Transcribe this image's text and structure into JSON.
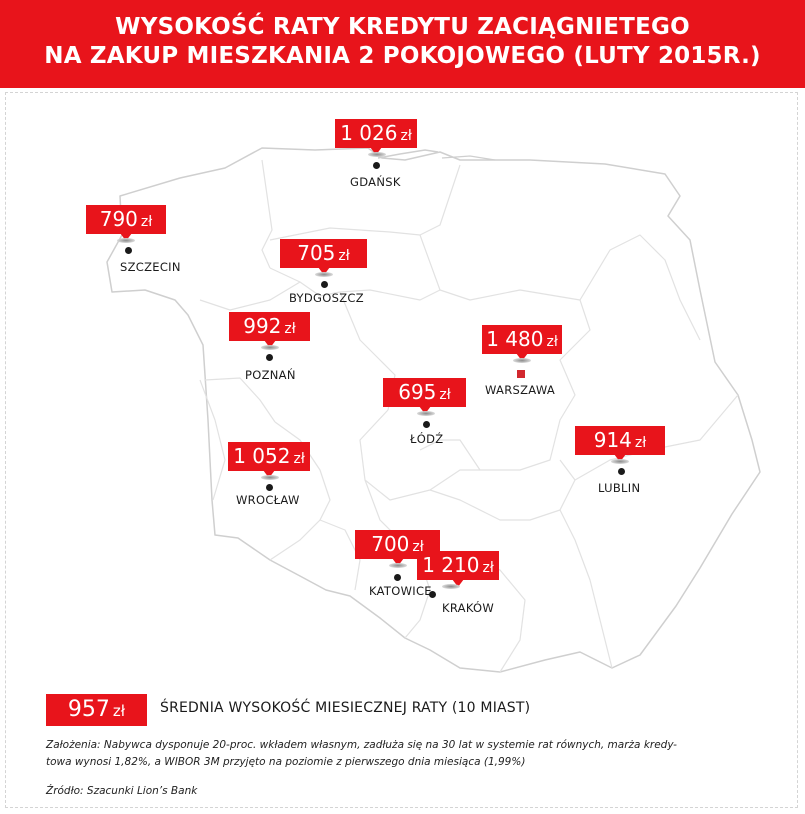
{
  "header": {
    "title_line1": "WYSOKOŚĆ RATY KREDYTU ZACIĄGNIETEGO",
    "title_line2": "NA ZAKUP MIESZKANIA 2 POKOJOWEGO (LUTY 2015R.)"
  },
  "colors": {
    "accent": "#e8141b",
    "marker_warszawa": "#d2282e",
    "text": "#1a1a1a"
  },
  "cities": [
    {
      "name": "GDAŃSK",
      "amount": "1 026",
      "unit": "zł"
    },
    {
      "name": "SZCZECIN",
      "amount": "790",
      "unit": "zł"
    },
    {
      "name": "BYDGOSZCZ",
      "amount": "705",
      "unit": "zł"
    },
    {
      "name": "POZNAŃ",
      "amount": "992",
      "unit": "zł"
    },
    {
      "name": "WARSZAWA",
      "amount": "1 480",
      "unit": "zł"
    },
    {
      "name": "ŁÓDŹ",
      "amount": "695",
      "unit": "zł"
    },
    {
      "name": "LUBLIN",
      "amount": "914",
      "unit": "zł"
    },
    {
      "name": "WROCŁAW",
      "amount": "1 052",
      "unit": "zł"
    },
    {
      "name": "KATOWICE",
      "amount": "700",
      "unit": "zł"
    },
    {
      "name": "KRAKÓW",
      "amount": "1 210",
      "unit": "zł"
    }
  ],
  "average": {
    "amount": "957",
    "unit": "zł",
    "label": "ŚREDNIA WYSOKOŚĆ MIESIECZNEJ RATY (10 MIAST)"
  },
  "notes": {
    "line1": "Założenia: Nabywca dysponuje 20-proc. wkładem własnym, zadłuża się na 30 lat w systemie rat równych, marża kredy-",
    "line2": "towa wynosi 1,82%, a WIBOR 3M przyjęto na poziomie z pierwszego dnia miesiąca (1,99%)",
    "source": "Źródło: Szacunki Lion’s Bank"
  }
}
